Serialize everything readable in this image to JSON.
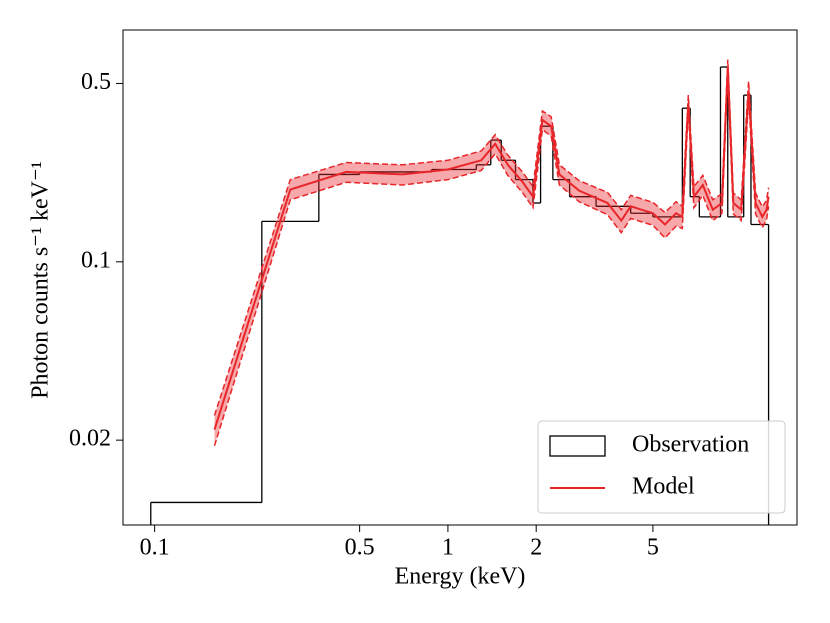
{
  "chart_data": {
    "type": "step_line",
    "xlabel": "Energy (keV)",
    "ylabel": "Photon counts s⁻¹ keV⁻¹",
    "xscale": "log",
    "yscale": "log",
    "xlim": [
      0.078,
      15.5
    ],
    "ylim": [
      0.0093,
      0.81
    ],
    "xticks": [
      0.1,
      0.5,
      1,
      2,
      5
    ],
    "yticks": [
      0.02,
      0.1,
      0.5
    ],
    "legend": "lower right",
    "series": [
      {
        "name": "Observation",
        "color": "#000000",
        "bins": [
          0.097,
          0.232,
          0.363,
          0.5,
          0.88,
          1.25,
          1.4,
          1.52,
          1.7,
          1.95,
          2.07,
          2.28,
          2.6,
          3.2,
          4.2,
          5.0,
          6.3,
          6.7,
          7.2,
          8.5,
          9.0,
          10.2,
          10.8,
          12.4
        ],
        "values": [
          0.0114,
          0.144,
          0.22,
          0.225,
          0.23,
          0.24,
          0.3,
          0.25,
          0.21,
          0.17,
          0.34,
          0.21,
          0.18,
          0.165,
          0.155,
          0.15,
          0.4,
          0.18,
          0.15,
          0.58,
          0.15,
          0.45,
          0.14
        ]
      },
      {
        "name": "Model",
        "color": "#e8262a",
        "x": [
          0.16,
          0.29,
          0.45,
          0.7,
          1.0,
          1.3,
          1.45,
          1.6,
          1.8,
          1.95,
          2.1,
          2.25,
          2.4,
          2.8,
          3.5,
          3.9,
          4.2,
          5.0,
          5.5,
          6.0,
          6.3,
          6.6,
          6.9,
          7.4,
          8.0,
          8.6,
          9.0,
          9.4,
          10.0,
          10.6,
          11.2,
          11.8,
          12.2,
          12.4
        ],
        "values": [
          0.022,
          0.192,
          0.225,
          0.22,
          0.23,
          0.25,
          0.29,
          0.24,
          0.205,
          0.18,
          0.36,
          0.34,
          0.22,
          0.19,
          0.17,
          0.145,
          0.165,
          0.155,
          0.14,
          0.155,
          0.15,
          0.42,
          0.18,
          0.2,
          0.16,
          0.17,
          0.58,
          0.17,
          0.16,
          0.47,
          0.17,
          0.15,
          0.16,
          0.18
        ],
        "lower": [
          0.019,
          0.175,
          0.205,
          0.2,
          0.21,
          0.228,
          0.265,
          0.218,
          0.186,
          0.163,
          0.33,
          0.31,
          0.2,
          0.172,
          0.153,
          0.13,
          0.148,
          0.139,
          0.124,
          0.138,
          0.135,
          0.39,
          0.163,
          0.182,
          0.145,
          0.155,
          0.54,
          0.154,
          0.145,
          0.43,
          0.154,
          0.136,
          0.146,
          0.165
        ],
        "upper": [
          0.025,
          0.21,
          0.245,
          0.24,
          0.25,
          0.272,
          0.315,
          0.262,
          0.224,
          0.197,
          0.39,
          0.37,
          0.24,
          0.208,
          0.187,
          0.16,
          0.182,
          0.171,
          0.156,
          0.172,
          0.165,
          0.45,
          0.197,
          0.218,
          0.175,
          0.185,
          0.62,
          0.186,
          0.175,
          0.51,
          0.186,
          0.164,
          0.174,
          0.195
        ]
      }
    ]
  }
}
